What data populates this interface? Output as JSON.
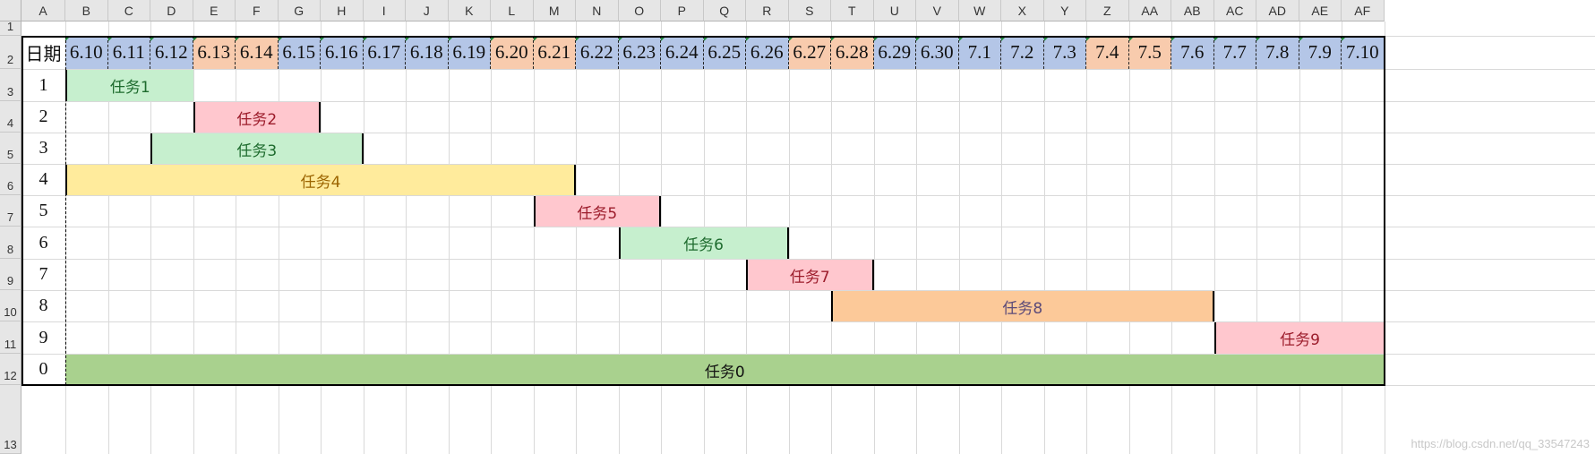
{
  "columns": [
    "A",
    "B",
    "C",
    "D",
    "E",
    "F",
    "G",
    "H",
    "I",
    "J",
    "K",
    "L",
    "M",
    "N",
    "O",
    "P",
    "Q",
    "R",
    "S",
    "T",
    "U",
    "V",
    "W",
    "X",
    "Y",
    "Z",
    "AA",
    "AB",
    "AC",
    "AD",
    "AE",
    "AF"
  ],
  "rows": [
    "1",
    "2",
    "3",
    "4",
    "5",
    "6",
    "7",
    "8",
    "9",
    "10",
    "11",
    "12",
    "13"
  ],
  "date_header_label": "日期",
  "dates": [
    {
      "text": "6.10",
      "color": "blue"
    },
    {
      "text": "6.11",
      "color": "blue"
    },
    {
      "text": "6.12",
      "color": "blue"
    },
    {
      "text": "6.13",
      "color": "orange"
    },
    {
      "text": "6.14",
      "color": "orange"
    },
    {
      "text": "6.15",
      "color": "blue"
    },
    {
      "text": "6.16",
      "color": "blue"
    },
    {
      "text": "6.17",
      "color": "blue"
    },
    {
      "text": "6.18",
      "color": "blue"
    },
    {
      "text": "6.19",
      "color": "blue"
    },
    {
      "text": "6.20",
      "color": "orange"
    },
    {
      "text": "6.21",
      "color": "orange"
    },
    {
      "text": "6.22",
      "color": "blue"
    },
    {
      "text": "6.23",
      "color": "blue"
    },
    {
      "text": "6.24",
      "color": "blue"
    },
    {
      "text": "6.25",
      "color": "blue"
    },
    {
      "text": "6.26",
      "color": "blue"
    },
    {
      "text": "6.27",
      "color": "orange"
    },
    {
      "text": "6.28",
      "color": "orange"
    },
    {
      "text": "6.29",
      "color": "blue"
    },
    {
      "text": "6.30",
      "color": "blue"
    },
    {
      "text": "7.1",
      "color": "blue"
    },
    {
      "text": "7.2",
      "color": "blue"
    },
    {
      "text": "7.3",
      "color": "blue"
    },
    {
      "text": "7.4",
      "color": "orange"
    },
    {
      "text": "7.5",
      "color": "orange"
    },
    {
      "text": "7.6",
      "color": "blue"
    },
    {
      "text": "7.7",
      "color": "blue"
    },
    {
      "text": "7.8",
      "color": "blue"
    },
    {
      "text": "7.9",
      "color": "blue"
    },
    {
      "text": "7.10",
      "color": "blue"
    }
  ],
  "tasks": [
    {
      "id": "1",
      "label": "任务1",
      "start": 0,
      "end": 2,
      "color": "green",
      "edge_left": true,
      "edge_right": false
    },
    {
      "id": "2",
      "label": "任务2",
      "start": 3,
      "end": 5,
      "color": "pink",
      "edge_left": true,
      "edge_right": true
    },
    {
      "id": "3",
      "label": "任务3",
      "start": 2,
      "end": 6,
      "color": "green",
      "edge_left": true,
      "edge_right": true
    },
    {
      "id": "4",
      "label": "任务4",
      "start": 0,
      "end": 11,
      "color": "yellow",
      "edge_left": true,
      "edge_right": true
    },
    {
      "id": "5",
      "label": "任务5",
      "start": 11,
      "end": 13,
      "color": "pink",
      "edge_left": true,
      "edge_right": true
    },
    {
      "id": "6",
      "label": "任务6",
      "start": 13,
      "end": 16,
      "color": "green",
      "edge_left": true,
      "edge_right": true
    },
    {
      "id": "7",
      "label": "任务7",
      "start": 16,
      "end": 18,
      "color": "pink",
      "edge_left": true,
      "edge_right": true
    },
    {
      "id": "8",
      "label": "任务8",
      "start": 18,
      "end": 26,
      "color": "orange",
      "edge_left": true,
      "edge_right": true
    },
    {
      "id": "9",
      "label": "任务9",
      "start": 27,
      "end": 30,
      "color": "pink",
      "edge_left": true,
      "edge_right": false
    },
    {
      "id": "0",
      "label": "任务0",
      "start": 0,
      "end": 30,
      "color": "dkgreen",
      "edge_left": false,
      "edge_right": false
    }
  ],
  "watermark": "https://blog.csdn.net/qq_33547243"
}
